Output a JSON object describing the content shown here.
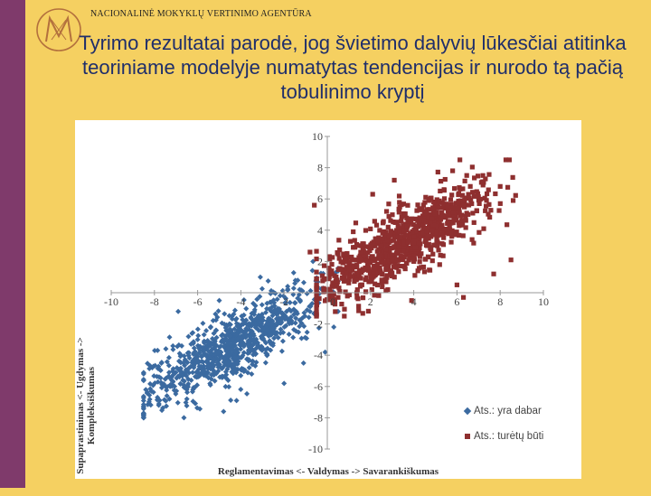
{
  "header": {
    "agency": "NACIONALINĖ MOKYKLŲ VERTINIMO AGENTŪRA",
    "title": "Tyrimo rezultatai parodė, jog švietimo dalyvių lūkesčiai atitinka teoriniame modelyje numatytas tendencijas ir nurodo tą pačią tobulinimo kryptį"
  },
  "colors": {
    "background": "#f5d061",
    "side_bar": "#7f3a6b",
    "title": "#1f2e6b",
    "series_now": "#3b6aa0",
    "series_should": "#8e2f2f"
  },
  "icons": {
    "logo": "agency-logo-icon"
  },
  "chart_data": {
    "type": "scatter",
    "xlabel": "Reglamentavimas <- Valdymas -> Savarankiškumas",
    "ylabel": "Supaprastinimas <- Ugdymas -> Kompleksiškumas",
    "xlim": [
      -10,
      10
    ],
    "ylim": [
      -10,
      10
    ],
    "x_ticks": [
      "-10",
      "-8",
      "-6",
      "-4",
      "-2",
      "0",
      "2",
      "4",
      "6",
      "8",
      "10"
    ],
    "y_ticks": [
      "10",
      "8",
      "6",
      "4",
      "2",
      "0",
      "-2",
      "-4",
      "-6",
      "-8",
      "-10"
    ],
    "grid": false,
    "legend": "bottom-right",
    "series": [
      {
        "name": "Ats.: yra dabar",
        "marker": "diamond",
        "cluster": {
          "center": [
            -4.5,
            -3.5
          ],
          "spread": [
            2.0,
            1.8
          ],
          "range_x": [
            -8.5,
            0.5
          ],
          "range_y": [
            -8.0,
            2.0
          ]
        },
        "points": [
          [
            -7.2,
            -5.6
          ],
          [
            -8.1,
            -4.8
          ],
          [
            -6.5,
            -6.8
          ],
          [
            -4.2,
            -6.9
          ],
          [
            -2.6,
            -2.7
          ],
          [
            -0.8,
            -1.2
          ],
          [
            0.3,
            -2.2
          ],
          [
            -0.1,
            -3.8
          ],
          [
            -3.1,
            1.0
          ],
          [
            -5.0,
            -0.5
          ],
          [
            -6.9,
            -1.2
          ],
          [
            -1.1,
            -4.5
          ],
          [
            -4.8,
            -7.6
          ],
          [
            -7.8,
            -7.2
          ],
          [
            -6.0,
            -3.0
          ],
          [
            -3.5,
            -5.2
          ],
          [
            -5.6,
            -4.4
          ],
          [
            -2.0,
            -5.8
          ],
          [
            -1.5,
            0.6
          ],
          [
            -8.4,
            -6.2
          ]
        ]
      },
      {
        "name": "Ats.: turėtų būti",
        "marker": "square",
        "cluster": {
          "center": [
            3.5,
            3.2
          ],
          "spread": [
            2.0,
            1.8
          ],
          "range_x": [
            -0.5,
            8.8
          ],
          "range_y": [
            -1.5,
            8.5
          ]
        },
        "points": [
          [
            5.8,
            7.8
          ],
          [
            8.6,
            5.9
          ],
          [
            7.2,
            7.5
          ],
          [
            3.1,
            7.2
          ],
          [
            -0.6,
            5.6
          ],
          [
            0.5,
            -0.3
          ],
          [
            6.0,
            0.5
          ],
          [
            8.5,
            2.1
          ],
          [
            1.2,
            3.9
          ],
          [
            2.8,
            0.2
          ],
          [
            4.7,
            5.9
          ],
          [
            6.7,
            3.4
          ],
          [
            -0.8,
            2.6
          ],
          [
            3.9,
            -0.5
          ],
          [
            7.7,
            1.2
          ],
          [
            2.1,
            6.3
          ],
          [
            5.2,
            1.8
          ],
          [
            8.0,
            6.8
          ],
          [
            0.2,
            1.4
          ],
          [
            6.3,
            -0.3
          ]
        ]
      }
    ]
  }
}
